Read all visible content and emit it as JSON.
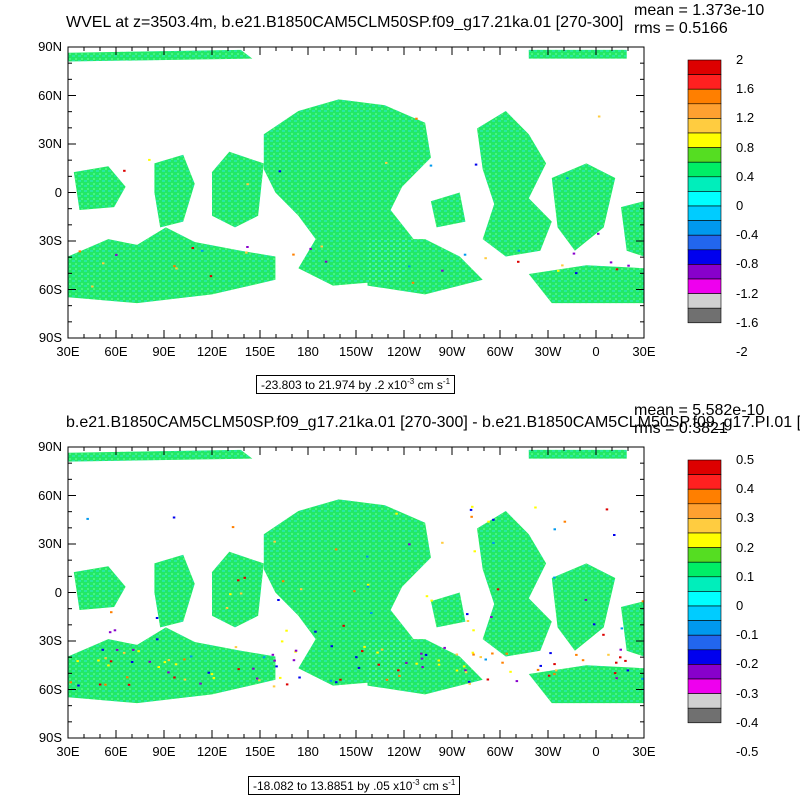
{
  "panels": [
    {
      "title": "WVEL at z=3503.4m, b.e21.B1850CAM5CLM50SP.f09_g17.21ka.01 [270-300]",
      "mean": "mean = 1.373e-10",
      "rms": "rms = 0.5166",
      "range": "-23.803 to 21.974 by .2 x10",
      "range_exp": "-3",
      "range_unit": " cm s",
      "range_unit_exp": "-1",
      "colorbar_labels": [
        "2",
        "1.6",
        "1.2",
        "0.8",
        "0.4",
        "0",
        "-0.4",
        "-0.8",
        "-1.2",
        "-1.6",
        "-2"
      ]
    },
    {
      "title": "b.e21.B1850CAM5CLM50SP.f09_g17.21ka.01 [270-300] - b.e21.B1850CAM5CLM50SP.f09_g17.PI.01 [",
      "mean": "mean = 5.582e-10",
      "rms": "rms = 0.3821",
      "range": "-18.082 to 13.8851 by .05 x10",
      "range_exp": "-3",
      "range_unit": " cm s",
      "range_unit_exp": "-1",
      "colorbar_labels": [
        "0.5",
        "0.4",
        "0.3",
        "0.2",
        "0.1",
        "0",
        "-0.1",
        "-0.2",
        "-0.3",
        "-0.4",
        "-0.5"
      ]
    }
  ],
  "lat_labels": [
    "90N",
    "60N",
    "30N",
    "0",
    "30S",
    "60S",
    "90S"
  ],
  "lon_labels": [
    "30E",
    "60E",
    "90E",
    "120E",
    "150E",
    "180",
    "150W",
    "120W",
    "90W",
    "60W",
    "30W",
    "0",
    "30E"
  ],
  "colors": {
    "palette": [
      "#dd0000",
      "#ff2020",
      "#ff7f00",
      "#ffa030",
      "#ffcc40",
      "#ffff00",
      "#55dd22",
      "#00ee66",
      "#00eebb",
      "#00ffff",
      "#00ccff",
      "#0099ee",
      "#2266ee",
      "#0000ee",
      "#8800cc",
      "#ee00ee",
      "#d0d0d0",
      "#707070"
    ],
    "ocean_green": "#22e866",
    "ocean_cyan": "#2ee8d0"
  }
}
